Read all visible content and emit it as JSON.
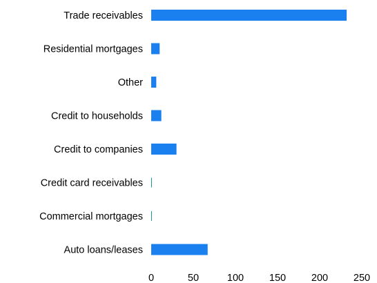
{
  "chart_data": {
    "type": "bar",
    "orientation": "horizontal",
    "title": "",
    "xlabel": "",
    "ylabel": "",
    "categories": [
      "Trade receivables",
      "Residential mortgages",
      "Other",
      "Credit to households",
      "Credit to companies",
      "Credit card receivables",
      "Commercial mortgages",
      "Auto loans/leases"
    ],
    "values": [
      232,
      10,
      6,
      12,
      30,
      0.5,
      0.5,
      67
    ],
    "xlim": [
      0,
      250
    ],
    "xticks": [
      0,
      50,
      100,
      150,
      200,
      250
    ],
    "grid": false,
    "legend": "none",
    "colors": {
      "bar": "#1a80f0",
      "bar_small": "#1a9a8a",
      "text": "#000000"
    }
  }
}
